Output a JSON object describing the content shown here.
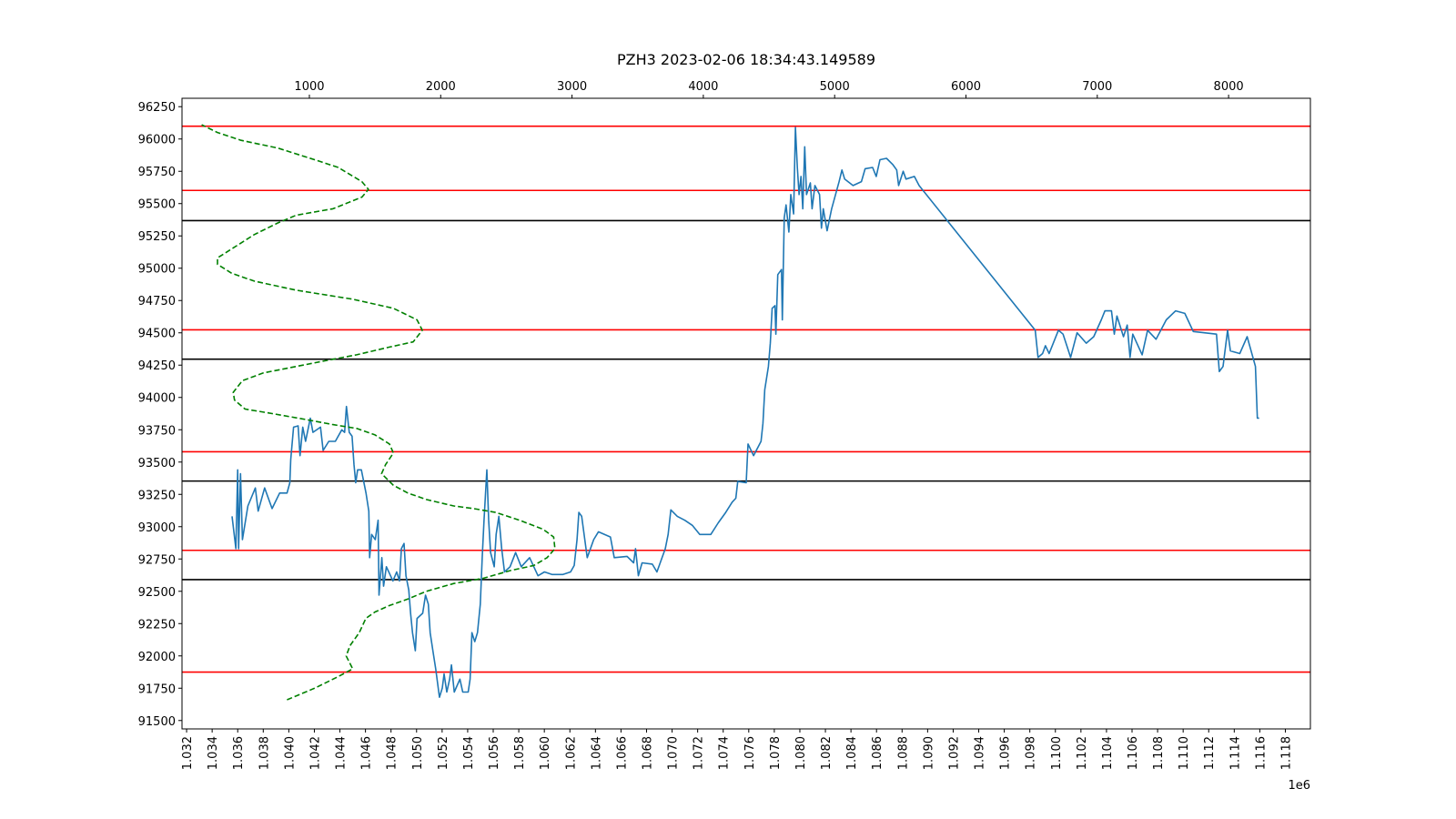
{
  "chart_data": {
    "type": "line",
    "title": "PZH3 2023-02-06 18:34:43.149589",
    "xlim": [
      1031640,
      1119960
    ],
    "xticks": [
      {
        "value": 1032000,
        "label": "1.032"
      },
      {
        "value": 1034000,
        "label": "1.034"
      },
      {
        "value": 1036000,
        "label": "1.036"
      },
      {
        "value": 1038000,
        "label": "1.038"
      },
      {
        "value": 1040000,
        "label": "1.040"
      },
      {
        "value": 1042000,
        "label": "1.042"
      },
      {
        "value": 1044000,
        "label": "1.044"
      },
      {
        "value": 1046000,
        "label": "1.046"
      },
      {
        "value": 1048000,
        "label": "1.048"
      },
      {
        "value": 1050000,
        "label": "1.050"
      },
      {
        "value": 1052000,
        "label": "1.052"
      },
      {
        "value": 1054000,
        "label": "1.054"
      },
      {
        "value": 1056000,
        "label": "1.056"
      },
      {
        "value": 1058000,
        "label": "1.058"
      },
      {
        "value": 1060000,
        "label": "1.060"
      },
      {
        "value": 1062000,
        "label": "1.062"
      },
      {
        "value": 1064000,
        "label": "1.064"
      },
      {
        "value": 1066000,
        "label": "1.066"
      },
      {
        "value": 1068000,
        "label": "1.068"
      },
      {
        "value": 1070000,
        "label": "1.070"
      },
      {
        "value": 1072000,
        "label": "1.072"
      },
      {
        "value": 1074000,
        "label": "1.074"
      },
      {
        "value": 1076000,
        "label": "1.076"
      },
      {
        "value": 1078000,
        "label": "1.078"
      },
      {
        "value": 1080000,
        "label": "1.080"
      },
      {
        "value": 1082000,
        "label": "1.082"
      },
      {
        "value": 1084000,
        "label": "1.084"
      },
      {
        "value": 1086000,
        "label": "1.086"
      },
      {
        "value": 1088000,
        "label": "1.088"
      },
      {
        "value": 1090000,
        "label": "1.090"
      },
      {
        "value": 1092000,
        "label": "1.092"
      },
      {
        "value": 1094000,
        "label": "1.094"
      },
      {
        "value": 1096000,
        "label": "1.096"
      },
      {
        "value": 1098000,
        "label": "1.098"
      },
      {
        "value": 1100000,
        "label": "1.100"
      },
      {
        "value": 1102000,
        "label": "1.102"
      },
      {
        "value": 1104000,
        "label": "1.104"
      },
      {
        "value": 1106000,
        "label": "1.106"
      },
      {
        "value": 1108000,
        "label": "1.108"
      },
      {
        "value": 1110000,
        "label": "1.110"
      },
      {
        "value": 1112000,
        "label": "1.112"
      },
      {
        "value": 1114000,
        "label": "1.114"
      },
      {
        "value": 1116000,
        "label": "1.116"
      },
      {
        "value": 1118000,
        "label": "1.118"
      }
    ],
    "x_offset_label": "1e6",
    "x2lim": [
      30,
      8623
    ],
    "x2ticks": [
      1000,
      2000,
      3000,
      4000,
      5000,
      6000,
      7000,
      8000
    ],
    "ylim": [
      91435,
      96315
    ],
    "yticks": [
      91500,
      91750,
      92000,
      92250,
      92500,
      92750,
      93000,
      93250,
      93500,
      93750,
      94000,
      94250,
      94500,
      94750,
      95000,
      95250,
      95500,
      95750,
      96000,
      96250
    ],
    "hlines": [
      {
        "color": "#ff0000",
        "values": [
          96099,
          95602,
          94523,
          93580,
          92817,
          91875
        ]
      },
      {
        "color": "#000000",
        "values": [
          95368,
          94296,
          93353,
          92590
        ]
      }
    ],
    "series": [
      {
        "color": "#1f77b4",
        "x": [
          1035560,
          1035860,
          1036000,
          1036070,
          1036220,
          1036370,
          1036800,
          1037380,
          1037600,
          1038110,
          1038690,
          1039280,
          1039860,
          1040080,
          1040150,
          1040370,
          1040730,
          1040880,
          1041090,
          1041310,
          1041680,
          1041890,
          1042480,
          1042690,
          1043130,
          1043640,
          1044150,
          1044370,
          1044510,
          1044730,
          1044950,
          1045100,
          1045240,
          1045390,
          1045680,
          1046040,
          1046260,
          1046330,
          1046480,
          1046770,
          1046990,
          1047060,
          1047280,
          1047420,
          1047640,
          1048150,
          1048440,
          1048660,
          1048810,
          1049020,
          1049170,
          1049390,
          1049530,
          1049680,
          1049900,
          1050040,
          1050480,
          1050700,
          1050920,
          1051060,
          1051280,
          1051500,
          1051790,
          1052010,
          1052150,
          1052370,
          1052590,
          1052730,
          1052950,
          1053390,
          1053610,
          1054040,
          1054190,
          1054330,
          1054550,
          1054770,
          1054990,
          1055140,
          1055280,
          1055500,
          1055640,
          1055790,
          1056080,
          1056230,
          1056440,
          1056660,
          1056880,
          1057320,
          1057750,
          1058190,
          1058850,
          1059500,
          1060010,
          1060590,
          1061460,
          1062050,
          1062340,
          1062560,
          1062700,
          1062920,
          1063360,
          1063860,
          1064230,
          1065170,
          1065470,
          1066480,
          1066990,
          1067140,
          1067360,
          1067650,
          1068450,
          1068810,
          1069470,
          1069690,
          1069900,
          1070410,
          1070990,
          1071580,
          1072160,
          1073030,
          1073610,
          1074200,
          1074700,
          1074990,
          1075140,
          1075800,
          1075940,
          1076380,
          1076960,
          1077110,
          1077250,
          1077540,
          1077690,
          1077830,
          1078050,
          1078120,
          1078270,
          1078560,
          1078630,
          1078780,
          1078920,
          1079140,
          1079290,
          1079510,
          1079650,
          1079800,
          1079940,
          1080090,
          1080230,
          1080380,
          1080520,
          1080820,
          1080960,
          1081180,
          1081540,
          1081690,
          1081830,
          1082130,
          1082490,
          1083070,
          1083290,
          1083510,
          1084160,
          1084820,
          1085110,
          1085690,
          1085980,
          1086270,
          1086780,
          1087290,
          1087580,
          1087730,
          1088090,
          1088310,
          1088960,
          1089330,
          1098420,
          1098640,
          1099000,
          1099220,
          1099510,
          1100240,
          1100600,
          1101190,
          1101700,
          1102420,
          1103000,
          1103590,
          1103880,
          1104390,
          1104610,
          1104820,
          1105330,
          1105620,
          1105840,
          1106060,
          1106790,
          1107220,
          1107880,
          1108680,
          1109410,
          1110130,
          1110790,
          1112610,
          1112830,
          1113120,
          1113480,
          1113700,
          1114430,
          1115010,
          1115660,
          1115810,
          1115950
        ],
        "values": [
          93080,
          92830,
          93440,
          92830,
          93410,
          92900,
          93160,
          93300,
          93120,
          93300,
          93140,
          93260,
          93260,
          93340,
          93520,
          93770,
          93780,
          93550,
          93770,
          93660,
          93840,
          93730,
          93770,
          93590,
          93660,
          93660,
          93750,
          93730,
          93930,
          93730,
          93700,
          93480,
          93340,
          93440,
          93440,
          93260,
          93120,
          92760,
          92940,
          92900,
          93050,
          92470,
          92760,
          92540,
          92690,
          92580,
          92650,
          92580,
          92830,
          92870,
          92620,
          92510,
          92330,
          92180,
          92040,
          92290,
          92330,
          92470,
          92400,
          92180,
          92040,
          91900,
          91680,
          91750,
          91860,
          91720,
          91820,
          91930,
          91720,
          91820,
          91720,
          91720,
          91820,
          92180,
          92110,
          92180,
          92400,
          92760,
          93050,
          93440,
          93050,
          92800,
          92690,
          92940,
          93080,
          92830,
          92650,
          92690,
          92800,
          92690,
          92760,
          92620,
          92650,
          92630,
          92630,
          92650,
          92700,
          92900,
          93110,
          93080,
          92760,
          92900,
          92960,
          92920,
          92760,
          92770,
          92720,
          92830,
          92620,
          92720,
          92710,
          92650,
          92830,
          92940,
          93130,
          93080,
          93050,
          93010,
          92940,
          92940,
          93030,
          93110,
          93190,
          93220,
          93350,
          93340,
          93640,
          93550,
          93660,
          93800,
          94060,
          94240,
          94420,
          94690,
          94710,
          94490,
          94950,
          94990,
          94600,
          95390,
          95490,
          95280,
          95570,
          95420,
          96090,
          95780,
          95570,
          95710,
          95460,
          95940,
          95570,
          95660,
          95460,
          95640,
          95570,
          95310,
          95460,
          95290,
          95460,
          95670,
          95760,
          95690,
          95640,
          95670,
          95770,
          95780,
          95710,
          95840,
          95850,
          95800,
          95760,
          95640,
          95750,
          95690,
          95710,
          95640,
          94520,
          94310,
          94340,
          94400,
          94340,
          94520,
          94490,
          94310,
          94500,
          94420,
          94470,
          94600,
          94670,
          94670,
          94490,
          94630,
          94470,
          94560,
          94310,
          94490,
          94330,
          94520,
          94450,
          94600,
          94670,
          94650,
          94510,
          94490,
          94200,
          94240,
          94520,
          94360,
          94340,
          94470,
          94240,
          93840,
          93840
        ]
      },
      {
        "color": "#008000",
        "axis": "x2",
        "linestyle": "dashed",
        "x": [
          830,
          1040,
          1220,
          1330,
          1280,
          1310,
          1380,
          1430,
          1500,
          1610,
          1750,
          1890,
          2100,
          2320,
          2530,
          2710,
          2810,
          2870,
          2860,
          2780,
          2600,
          2420,
          2250,
          2100,
          1890,
          1750,
          1640,
          1550,
          1580,
          1640,
          1610,
          1500,
          1360,
          1180,
          970,
          690,
          510,
          430,
          420,
          490,
          650,
          900,
          1150,
          1360,
          1610,
          1790,
          1860,
          1820,
          1640,
          1330,
          900,
          580,
          410,
          300,
          300,
          410,
          580,
          760,
          900,
          1180,
          1400,
          1450,
          1400,
          1220,
          1040,
          760,
          480,
          300,
          180
        ],
        "values": [
          91660,
          91750,
          91840,
          91900,
          92000,
          92080,
          92180,
          92290,
          92340,
          92390,
          92440,
          92500,
          92560,
          92600,
          92660,
          92700,
          92760,
          92830,
          92920,
          92980,
          93050,
          93110,
          93140,
          93160,
          93210,
          93260,
          93320,
          93410,
          93480,
          93570,
          93640,
          93710,
          93760,
          93790,
          93830,
          93880,
          93910,
          93980,
          94040,
          94130,
          94190,
          94240,
          94290,
          94330,
          94390,
          94430,
          94520,
          94600,
          94690,
          94760,
          94830,
          94900,
          94960,
          95030,
          95080,
          95150,
          95260,
          95350,
          95410,
          95460,
          95550,
          95610,
          95670,
          95780,
          95840,
          95930,
          95990,
          96050,
          96110
        ]
      }
    ]
  }
}
